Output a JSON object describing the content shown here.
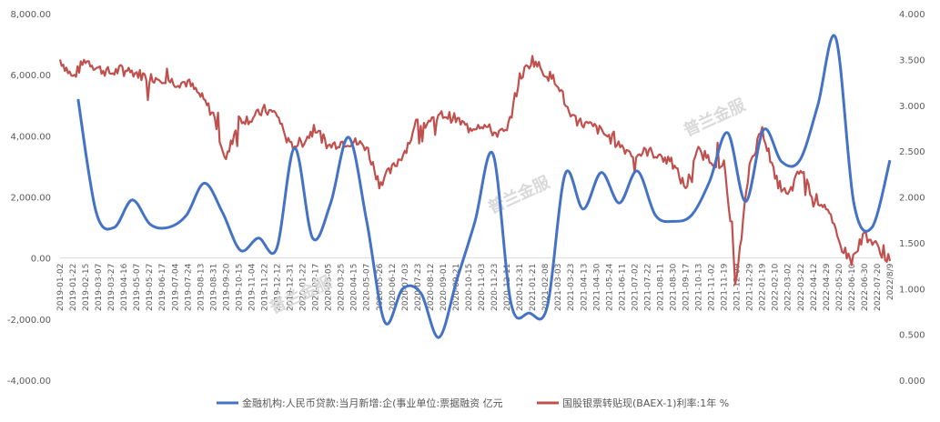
{
  "chart_data": {
    "type": "line",
    "left_axis": {
      "ticks": [
        "8,000.00",
        "6,000.00",
        "4,000.00",
        "2,000.00",
        "0.00",
        "-2,000.00",
        "-4,000.00"
      ],
      "ylim": [
        -4000,
        8000
      ]
    },
    "right_axis": {
      "ticks": [
        "4.000",
        "3.500",
        "3.000",
        "2.500",
        "2.000",
        "1.500",
        "1.000",
        "0.500",
        "0.000"
      ],
      "ylim": [
        0,
        4
      ]
    },
    "x_labels": [
      "2019-01-02",
      "2019-01-22",
      "2019-02-15",
      "2019-03-07",
      "2019-03-27",
      "2019-04-16",
      "2019-05-07",
      "2019-05-27",
      "2019-06-17",
      "2019-07-04",
      "2019-07-24",
      "2019-08-13",
      "2019-08-31",
      "2019-09-20",
      "2019-10-15",
      "2019-11-04",
      "2019-11-22",
      "2019-12-12",
      "2019-12-31",
      "2020-01-22",
      "2020-02-17",
      "2020-03-05",
      "2020-03-25",
      "2020-04-15",
      "2020-05-07",
      "2020-05-26",
      "2020-06-12",
      "2020-07-03",
      "2020-07-23",
      "2020-08-12",
      "2020-09-01",
      "2020-09-21",
      "2020-10-15",
      "2020-11-03",
      "2020-11-23",
      "2020-12-11",
      "2020-12-31",
      "2021-01-21",
      "2021-02-08",
      "2021-03-03",
      "2021-03-23",
      "2021-04-13",
      "2021-04-30",
      "2021-05-24",
      "2021-06-11",
      "2021-07-02",
      "2021-07-22",
      "2021-08-11",
      "2021-08-30",
      "2021-09-17",
      "2021-10-13",
      "2021-11-02",
      "2021-11-19",
      "2021-12-09",
      "2021-12-29",
      "2022-01-19",
      "2022-02-10",
      "2022-03-02",
      "2022-03-22",
      "2022-04-12",
      "2022-04-29",
      "2022-05-20",
      "2022-06-10",
      "2022-06-30",
      "2022-07-20",
      "2022/8/9"
    ],
    "series": [
      {
        "name": "金融机构:人民币贷款:当月新增:企(事业单位:票据融资 亿元",
        "axis": "left",
        "color": "#4472c4",
        "points": [
          [
            2,
            5200
          ],
          [
            4,
            1500
          ],
          [
            6,
            1000
          ],
          [
            8,
            1900
          ],
          [
            10,
            1100
          ],
          [
            12,
            1000
          ],
          [
            14,
            1400
          ],
          [
            16,
            2450
          ],
          [
            18,
            1500
          ],
          [
            20,
            250
          ],
          [
            22,
            650
          ],
          [
            24,
            300
          ],
          [
            26,
            3600
          ],
          [
            28,
            650
          ],
          [
            30,
            1800
          ],
          [
            32,
            3950
          ],
          [
            34,
            1200
          ],
          [
            36,
            -2100
          ],
          [
            38,
            -1000
          ],
          [
            40,
            -1150
          ],
          [
            42,
            -2600
          ],
          [
            44,
            -700
          ],
          [
            46,
            1200
          ],
          [
            48,
            3400
          ],
          [
            50,
            -1500
          ],
          [
            52,
            -1800
          ],
          [
            54,
            -1600
          ],
          [
            56,
            2750
          ],
          [
            58,
            1600
          ],
          [
            60,
            2800
          ],
          [
            62,
            1800
          ],
          [
            64,
            2850
          ],
          [
            66,
            1400
          ],
          [
            68,
            1200
          ],
          [
            70,
            1400
          ],
          [
            72,
            2500
          ],
          [
            74,
            4100
          ],
          [
            76,
            1850
          ],
          [
            78,
            4200
          ],
          [
            80,
            3150
          ],
          [
            82,
            3200
          ],
          [
            84,
            5000
          ],
          [
            86,
            7200
          ],
          [
            88,
            1800
          ],
          [
            90,
            1000
          ],
          [
            92,
            3200
          ]
        ]
      },
      {
        "name": "国股银票转贴现(BAEX-1)利率:1年 %",
        "axis": "right",
        "color": "#c0504d",
        "points": [
          [
            0,
            3.5
          ],
          [
            1,
            3.3
          ],
          [
            2,
            3.5
          ],
          [
            3,
            3.4
          ],
          [
            4,
            3.35
          ],
          [
            5,
            3.4
          ],
          [
            6,
            3.35
          ],
          [
            7,
            3.3
          ],
          [
            8,
            3.3
          ],
          [
            9,
            3.25
          ],
          [
            10,
            3.25
          ],
          [
            11,
            3.1
          ],
          [
            12,
            2.9
          ],
          [
            13,
            2.4
          ],
          [
            14,
            2.85
          ],
          [
            15,
            2.85
          ],
          [
            16,
            2.95
          ],
          [
            17,
            2.9
          ],
          [
            18,
            2.55
          ],
          [
            19,
            2.6
          ],
          [
            20,
            2.75
          ],
          [
            21,
            2.55
          ],
          [
            22,
            2.6
          ],
          [
            23,
            2.6
          ],
          [
            24,
            2.55
          ],
          [
            25,
            2.15
          ],
          [
            26,
            2.3
          ],
          [
            27,
            2.5
          ],
          [
            28,
            2.8
          ],
          [
            29,
            2.8
          ],
          [
            30,
            2.9
          ],
          [
            31,
            2.85
          ],
          [
            32,
            2.75
          ],
          [
            33,
            2.8
          ],
          [
            34,
            2.7
          ],
          [
            35,
            2.7
          ],
          [
            36,
            3.3
          ],
          [
            37,
            3.5
          ],
          [
            38,
            3.35
          ],
          [
            39,
            3.25
          ],
          [
            40,
            2.85
          ],
          [
            41,
            2.8
          ],
          [
            42,
            2.75
          ],
          [
            43,
            2.65
          ],
          [
            44,
            2.55
          ],
          [
            45,
            2.45
          ],
          [
            46,
            2.5
          ],
          [
            47,
            2.45
          ],
          [
            48,
            2.35
          ],
          [
            49,
            2.1
          ],
          [
            50,
            2.5
          ],
          [
            51,
            2.4
          ],
          [
            52,
            2.35
          ],
          [
            53,
            1.1
          ],
          [
            54,
            2.35
          ],
          [
            55,
            2.75
          ],
          [
            56,
            2.2
          ],
          [
            57,
            2.0
          ],
          [
            58,
            2.3
          ],
          [
            59,
            2.0
          ],
          [
            60,
            1.9
          ],
          [
            61,
            1.5
          ],
          [
            62,
            1.3
          ],
          [
            63,
            1.6
          ],
          [
            64,
            1.45
          ],
          [
            65,
            1.3
          ]
        ]
      }
    ],
    "watermark": "普兰金服"
  }
}
